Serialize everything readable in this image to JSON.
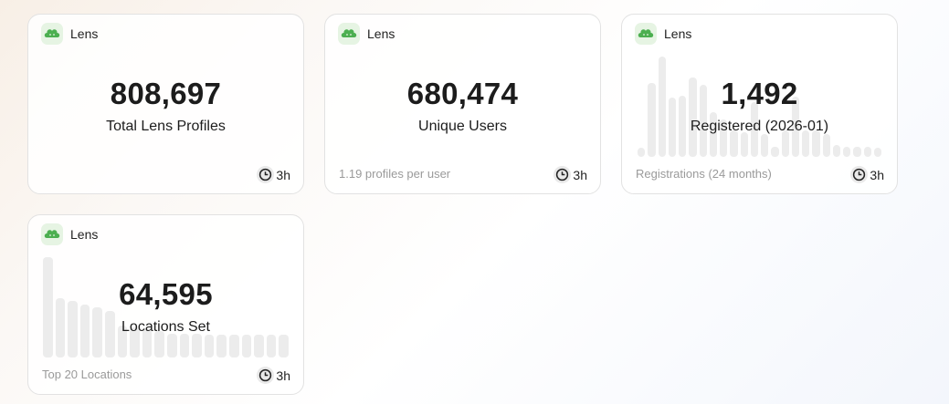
{
  "brand_color": "#4caf50",
  "cards": [
    {
      "source": "Lens",
      "value": "808,697",
      "label": "Total Lens Profiles",
      "footer": "",
      "age": "3h"
    },
    {
      "source": "Lens",
      "value": "680,474",
      "label": "Unique Users",
      "footer": "1.19 profiles per user",
      "age": "3h"
    },
    {
      "source": "Lens",
      "value": "1,492",
      "label": "Registered (2026-01)",
      "footer": "Registrations (24 months)",
      "age": "3h"
    },
    {
      "source": "Lens",
      "value": "64,595",
      "label": "Locations Set",
      "footer": "Top 20 Locations",
      "age": "3h"
    }
  ],
  "chart_data": [
    {
      "type": "bar",
      "card": 2,
      "title": "Registrations (24 months)",
      "values_relative": [
        0.09,
        0.74,
        1.0,
        0.59,
        0.61,
        0.79,
        0.72,
        0.45,
        0.37,
        0.26,
        0.25,
        0.55,
        0.23,
        0.1,
        0.26,
        0.6,
        0.26,
        0.26,
        0.23,
        0.12,
        0.1,
        0.1,
        0.1,
        0.09
      ]
    },
    {
      "type": "bar",
      "card": 3,
      "title": "Top 20 Locations",
      "values_relative": [
        1.0,
        0.59,
        0.56,
        0.53,
        0.5,
        0.46,
        0.32,
        0.3,
        0.28,
        0.26,
        0.24,
        0.24,
        0.24,
        0.23,
        0.23,
        0.23,
        0.23,
        0.23,
        0.23,
        0.23
      ]
    }
  ]
}
